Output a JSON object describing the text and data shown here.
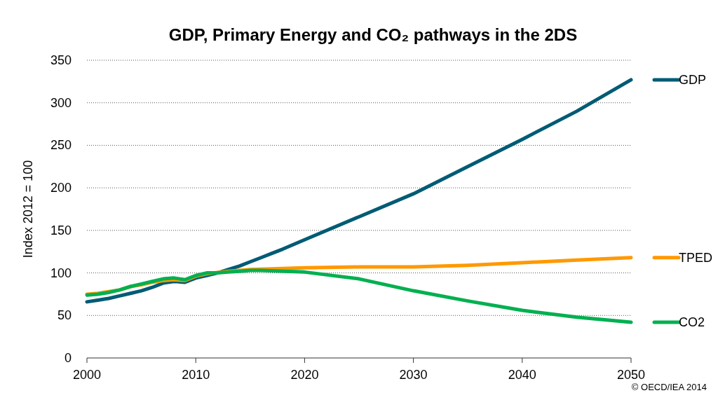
{
  "chart_data": {
    "type": "line",
    "title": "GDP, Primary Energy and CO₂  pathways in the 2DS",
    "ylabel": "Index 2012 = 100",
    "xlim": [
      2000,
      2050
    ],
    "xticks": [
      2000,
      2010,
      2020,
      2030,
      2040,
      2050
    ],
    "ylim": [
      0,
      350
    ],
    "yticks": [
      0,
      50,
      100,
      150,
      200,
      250,
      300,
      350
    ],
    "grid": "y",
    "legend": "right",
    "marker": "none",
    "line_style": "solid",
    "annotations": [
      "© OECD/IEA 2014"
    ],
    "series": [
      {
        "name": "GDP",
        "color": "#005b74",
        "x": [
          2000,
          2001,
          2002,
          2003,
          2004,
          2005,
          2006,
          2007,
          2008,
          2009,
          2010,
          2011,
          2012,
          2013,
          2014,
          2015,
          2016,
          2017,
          2018,
          2020,
          2025,
          2030,
          2035,
          2040,
          2045,
          2050
        ],
        "values": [
          66,
          68,
          70,
          73,
          76,
          79,
          83,
          88,
          90,
          89,
          94,
          97,
          100,
          104,
          108,
          113,
          118,
          123,
          128,
          139,
          166,
          193,
          225,
          257,
          290,
          327
        ]
      },
      {
        "name": "TPED",
        "color": "#ff9900",
        "x": [
          2000,
          2001,
          2002,
          2003,
          2004,
          2005,
          2006,
          2007,
          2008,
          2009,
          2010,
          2011,
          2012,
          2013,
          2014,
          2015,
          2020,
          2025,
          2030,
          2035,
          2040,
          2045,
          2050
        ],
        "values": [
          75,
          76,
          78,
          80,
          84,
          86,
          89,
          91,
          92,
          91,
          96,
          99,
          null,
          102,
          103,
          104,
          106,
          107,
          107,
          109,
          112,
          115,
          118
        ]
      },
      {
        "name": "CO2",
        "color": "#00b050",
        "x": [
          2000,
          2001,
          2002,
          2003,
          2004,
          2005,
          2006,
          2007,
          2008,
          2009,
          2010,
          2011,
          2012,
          2013,
          2014,
          2015,
          2016,
          2020,
          2025,
          2030,
          2035,
          2040,
          2045,
          2050
        ],
        "values": [
          74,
          75,
          77,
          80,
          84,
          87,
          90,
          93,
          94,
          92,
          97,
          100,
          100,
          101,
          102,
          103,
          103,
          101,
          93,
          79,
          67,
          56,
          48,
          42
        ]
      }
    ]
  }
}
